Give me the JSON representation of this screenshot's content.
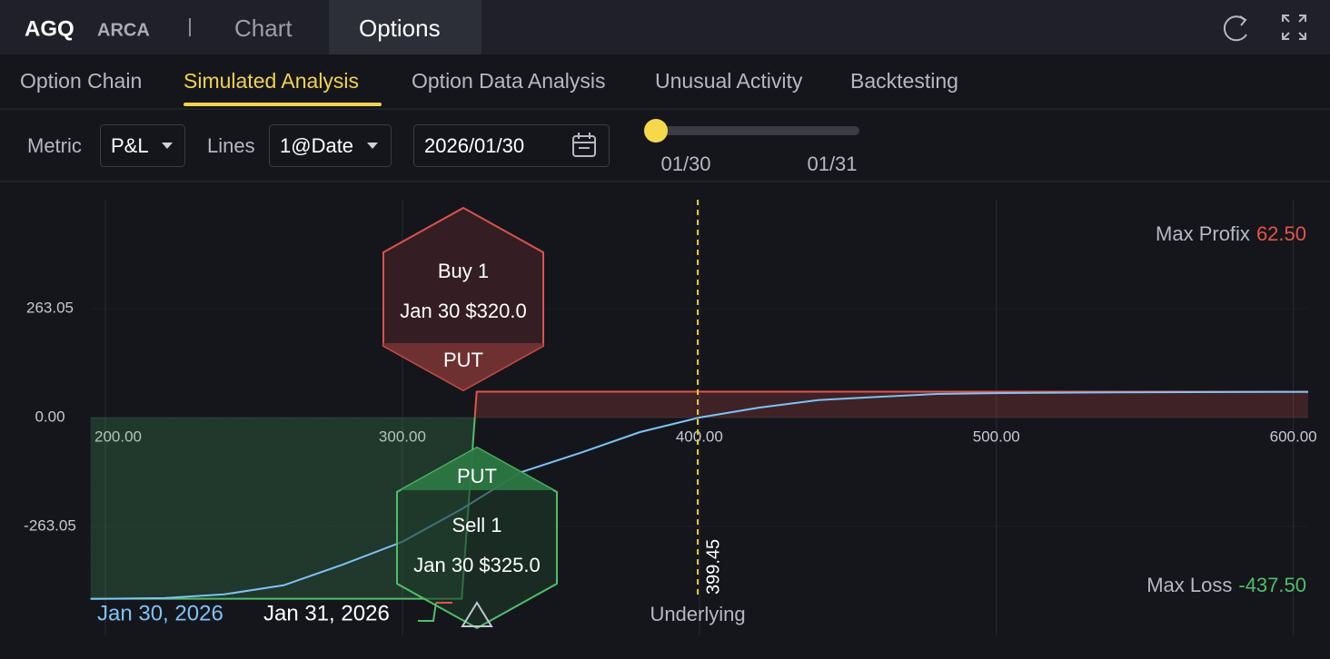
{
  "header": {
    "symbol": "AGQ",
    "exchange": "ARCA",
    "tabs": [
      "Chart",
      "Options"
    ]
  },
  "subtabs": [
    "Option Chain",
    "Simulated Analysis",
    "Option Data Analysis",
    "Unusual Activity",
    "Backtesting"
  ],
  "controls": {
    "metric_label": "Metric",
    "metric": "P&L",
    "lines_label": "Lines",
    "lines": "1@Date",
    "date": "2026/01/30",
    "slider_labels": [
      "01/30",
      "01/31"
    ]
  },
  "chart": {
    "type": "line",
    "xlim": [
      195.1,
      605
    ],
    "xticks": [
      {
        "value": 200,
        "label": "200.00"
      },
      {
        "value": 300,
        "label": "300.00"
      },
      {
        "value": 400,
        "label": "400.00"
      },
      {
        "value": 500,
        "label": "500.00"
      },
      {
        "value": 600,
        "label": "600.00"
      }
    ],
    "ylim": [
      -526.1,
      526.1
    ],
    "yticks": [
      {
        "value": 263.05,
        "label": "263.05"
      },
      {
        "value": 0,
        "label": "0.00"
      },
      {
        "value": -263.05,
        "label": "-263.05"
      }
    ],
    "series": [
      {
        "name": "Jan 30, 2026",
        "color": "#7ec3f5",
        "x": [
          195,
          220,
          240,
          260,
          280,
          300,
          320,
          340,
          360,
          380,
          400,
          420,
          440,
          460,
          480,
          500,
          540,
          605
        ],
        "values": [
          -438,
          -436,
          -427,
          -405,
          -355,
          -300,
          -221,
          -132,
          -85,
          -35,
          0,
          24,
          42,
          50,
          57,
          59,
          61,
          62
        ]
      },
      {
        "name": "Jan 31, 2026",
        "color_above": "#e5534b",
        "color_below": "#4fbf6a",
        "x": [
          195,
          320,
          325,
          605
        ],
        "values": [
          -437.5,
          -437.5,
          62.5,
          62.5
        ]
      }
    ],
    "underlying": {
      "value": 399.45,
      "name": "Underlying"
    },
    "legs": [
      {
        "action": "Buy 1",
        "contract": "Jan 30 $320.0",
        "kind": "PUT"
      },
      {
        "kind": "PUT",
        "action": "Sell 1",
        "contract": "Jan 30 $325.0"
      }
    ],
    "max_profit": {
      "label": "Max Profix",
      "value": "62.50"
    },
    "max_loss": {
      "label": "Max Loss",
      "value": "-437.50"
    }
  }
}
